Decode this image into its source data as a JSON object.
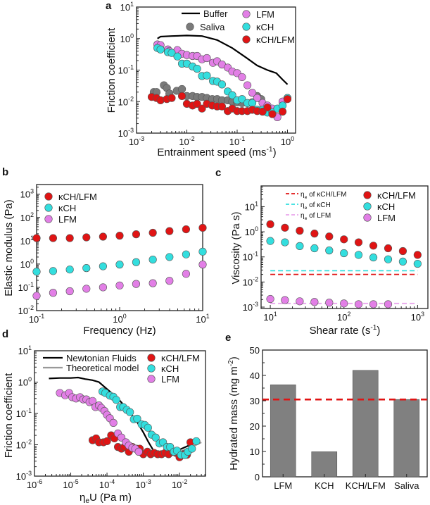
{
  "chart_data": [
    {
      "panel": "a",
      "type": "scatter",
      "xlabel": "Entrainment speed (ms^{-1})",
      "ylabel": "Friction coefficient",
      "xscale": "log",
      "yscale": "log",
      "xlim": [
        0.001,
        1.45
      ],
      "ylim": [
        0.001,
        10
      ],
      "xticks": [
        0.001,
        0.01,
        0.1,
        1
      ],
      "xtick_labels": [
        "10^{-3}",
        "10^{-2}",
        "10^{-1}",
        "10^{0}"
      ],
      "yticks": [
        0.001,
        0.01,
        0.1,
        1,
        10
      ],
      "ytick_labels": [
        "10^{-3}",
        "10^{-2}",
        "10^{-1}",
        "10^{0}",
        "10^{1}"
      ],
      "grid": false,
      "legend": "top",
      "series": [
        {
          "name": "Buffer",
          "kind": "line",
          "color": "#000000",
          "x": [
            0.0026,
            0.003,
            0.005,
            0.01,
            0.02,
            0.04,
            0.08,
            0.15,
            0.25,
            0.4,
            0.6,
            0.8,
            1.0
          ],
          "y": [
            1.0,
            1.15,
            1.2,
            1.25,
            1.2,
            0.9,
            0.5,
            0.25,
            0.14,
            0.1,
            0.08,
            0.05,
            0.035
          ]
        },
        {
          "name": "Saliva",
          "kind": "points",
          "color": "#7a7a7a",
          "x": [
            0.0022,
            0.0025,
            0.0035,
            0.004,
            0.0045,
            0.0063,
            0.008,
            0.01,
            0.013,
            0.016,
            0.02,
            0.025,
            0.032,
            0.04,
            0.05,
            0.065,
            0.08,
            0.1,
            0.125,
            0.16,
            0.2,
            0.25,
            0.3
          ],
          "y": [
            0.02,
            0.02,
            0.033,
            0.027,
            0.018,
            0.022,
            0.025,
            0.015,
            0.015,
            0.014,
            0.014,
            0.013,
            0.012,
            0.012,
            0.011,
            0.011,
            0.01,
            0.0095,
            0.009,
            0.009,
            0.0095,
            0.015,
            0.012
          ]
        },
        {
          "name": "LFM",
          "kind": "points",
          "color": "#e27fe6",
          "x": [
            0.0026,
            0.003,
            0.0042,
            0.0045,
            0.0065,
            0.008,
            0.01,
            0.013,
            0.016,
            0.02,
            0.025,
            0.033,
            0.04,
            0.05,
            0.065,
            0.08,
            0.1,
            0.125,
            0.16,
            0.2,
            0.25,
            0.32,
            0.4,
            0.5,
            0.63,
            0.8,
            1.0
          ],
          "y": [
            0.65,
            0.62,
            0.45,
            0.4,
            0.43,
            0.33,
            0.3,
            0.28,
            0.28,
            0.22,
            0.24,
            0.17,
            0.19,
            0.15,
            0.12,
            0.09,
            0.08,
            0.06,
            0.033,
            0.019,
            0.013,
            0.009,
            0.0075,
            0.006,
            0.0032,
            0.01,
            0.013
          ]
        },
        {
          "name": "κCH",
          "kind": "points",
          "color": "#33dede",
          "x": [
            0.0026,
            0.003,
            0.0042,
            0.005,
            0.0065,
            0.008,
            0.01,
            0.013,
            0.016,
            0.02,
            0.025,
            0.033,
            0.04,
            0.05,
            0.065,
            0.08,
            0.1,
            0.125,
            0.16,
            0.2,
            0.25,
            0.32,
            0.4,
            0.5,
            0.63,
            0.8,
            1.0
          ],
          "y": [
            0.5,
            0.45,
            0.37,
            0.35,
            0.27,
            0.16,
            0.16,
            0.13,
            0.11,
            0.065,
            0.067,
            0.045,
            0.043,
            0.035,
            0.021,
            0.016,
            0.011,
            0.012,
            0.009,
            0.009,
            0.0055,
            0.0055,
            0.0045,
            0.0045,
            0.006,
            0.0075,
            0.013
          ]
        },
        {
          "name": "κCH/LFM",
          "kind": "points",
          "color": "#e01414",
          "x": [
            0.002,
            0.0025,
            0.003,
            0.004,
            0.005,
            0.008,
            0.01,
            0.013,
            0.016,
            0.02,
            0.025,
            0.032,
            0.04,
            0.05,
            0.065,
            0.08,
            0.1,
            0.125,
            0.16,
            0.2,
            0.25,
            0.32,
            0.4,
            0.5,
            0.8,
            1.0
          ],
          "y": [
            0.014,
            0.013,
            0.011,
            0.012,
            0.013,
            0.015,
            0.0085,
            0.0075,
            0.0085,
            0.006,
            0.0085,
            0.0075,
            0.007,
            0.007,
            0.005,
            0.006,
            0.005,
            0.005,
            0.005,
            0.0055,
            0.005,
            0.0048,
            0.0065,
            0.004,
            0.0048,
            0.012
          ]
        }
      ]
    },
    {
      "panel": "b",
      "type": "scatter",
      "xlabel": "Frequency (Hz)",
      "ylabel": "Elastic modulus (Pa)",
      "xscale": "log",
      "yscale": "log",
      "xlim": [
        0.1,
        10
      ],
      "ylim": [
        0.01,
        2600
      ],
      "xticks": [
        0.1,
        1,
        10
      ],
      "xtick_labels": [
        "10^{-1}",
        "10^{0}",
        "10^{1}"
      ],
      "yticks": [
        0.01,
        0.1,
        1,
        10,
        100,
        1000
      ],
      "ytick_labels": [
        "10^{-2}",
        "10^{-1}",
        "10^{0}",
        "10^{1}",
        "10^{2}",
        "10^{3}"
      ],
      "grid": false,
      "legend": "top-left",
      "series": [
        {
          "name": "κCH/LFM",
          "kind": "points",
          "color": "#e01414",
          "x": [
            0.1,
            0.158,
            0.251,
            0.398,
            0.631,
            1,
            1.58,
            2.51,
            3.98,
            6.31,
            10
          ],
          "y": [
            13,
            13,
            13,
            14,
            15,
            16.5,
            19,
            22,
            26,
            31,
            36
          ]
        },
        {
          "name": "κCH",
          "kind": "points",
          "color": "#33dede",
          "x": [
            0.1,
            0.158,
            0.251,
            0.398,
            0.631,
            1,
            1.58,
            2.51,
            3.98,
            6.31,
            10
          ],
          "y": [
            0.47,
            0.5,
            0.58,
            0.67,
            0.8,
            0.95,
            1.2,
            1.55,
            2,
            2.6,
            3.4
          ]
        },
        {
          "name": "LFM",
          "kind": "points",
          "color": "#e27fe6",
          "x": [
            0.1,
            0.158,
            0.251,
            0.398,
            0.631,
            1,
            1.58,
            2.51,
            3.98,
            6.31,
            10
          ],
          "y": [
            0.043,
            0.058,
            0.068,
            0.087,
            0.1,
            0.12,
            0.14,
            0.15,
            0.19,
            0.38,
            0.95
          ]
        }
      ]
    },
    {
      "panel": "c",
      "type": "scatter",
      "xlabel": "Shear rate (s^{-1})",
      "ylabel": "Viscosity (Pa s)",
      "xscale": "log",
      "yscale": "log",
      "xlim": [
        7.5,
        1380
      ],
      "ylim": [
        0.00088,
        67
      ],
      "xticks": [
        10,
        100,
        1000
      ],
      "xtick_labels": [
        "10^{1}",
        "10^{2}",
        "10^{3}"
      ],
      "yticks": [
        0.001,
        0.01,
        0.1,
        1,
        10
      ],
      "ytick_labels": [
        "10^{-3}",
        "10^{-2}",
        "10^{-1}",
        "10^{0}",
        "10^{1}"
      ],
      "grid": false,
      "legend": "top",
      "series": [
        {
          "name": "η_{e} of κCH/LFM",
          "kind": "hline",
          "color": "#e01414",
          "x": [
            10,
            1000
          ],
          "y": [
            0.02,
            0.02
          ]
        },
        {
          "name": "η_{e} of κCH",
          "kind": "hline",
          "color": "#33dede",
          "x": [
            10,
            1000
          ],
          "y": [
            0.028,
            0.028
          ]
        },
        {
          "name": "η_{e} of LFM",
          "kind": "hline",
          "color": "#e9a6ec",
          "x": [
            10,
            1000
          ],
          "y": [
            0.0014,
            0.0014
          ]
        },
        {
          "name": "κCH/LFM",
          "kind": "points",
          "color": "#e01414",
          "x": [
            10,
            15.8,
            25.1,
            39.8,
            63.1,
            100,
            158,
            251,
            398,
            631,
            1000
          ],
          "y": [
            2.0,
            1.45,
            1.1,
            0.85,
            0.65,
            0.5,
            0.38,
            0.28,
            0.22,
            0.17,
            0.12
          ]
        },
        {
          "name": "κCH",
          "kind": "points",
          "color": "#33dede",
          "x": [
            10,
            15.8,
            25.1,
            39.8,
            63.1,
            100,
            158,
            251,
            398,
            631,
            1000
          ],
          "y": [
            0.43,
            0.38,
            0.27,
            0.22,
            0.18,
            0.14,
            0.12,
            0.095,
            0.08,
            0.065,
            0.053
          ]
        },
        {
          "name": "LFM",
          "kind": "points",
          "color": "#e27fe6",
          "x": [
            10,
            15.8,
            25.1,
            39.8,
            63.1,
            100,
            158,
            251,
            398
          ],
          "y": [
            0.0021,
            0.0019,
            0.0017,
            0.0016,
            0.0015,
            0.0014,
            0.0013,
            0.0013,
            0.0013
          ]
        }
      ]
    },
    {
      "panel": "d",
      "type": "scatter",
      "xlabel": "η_{e}U (Pa m)",
      "ylabel": "Friction coefficient",
      "xscale": "log",
      "yscale": "log",
      "xlim": [
        1e-06,
        0.052
      ],
      "ylim": [
        0.001,
        10
      ],
      "xticks": [
        1e-06,
        1e-05,
        0.0001,
        0.001,
        0.01
      ],
      "xtick_labels": [
        "10^{-6}",
        "10^{-5}",
        "10^{-4}",
        "10^{-3}",
        "10^{-2}"
      ],
      "yticks": [
        0.001,
        0.01,
        0.1,
        1,
        10
      ],
      "ytick_labels": [
        "10^{-3}",
        "10^{-2}",
        "10^{-1}",
        "10^{0}",
        "10^{1}"
      ],
      "grid": false,
      "legend": "top",
      "series": [
        {
          "name": "Newtonian Fluids",
          "kind": "line",
          "color": "#000000",
          "x": [
            2.5e-06,
            5e-06,
            1e-05,
            1.6e-05,
            2.5e-05,
            4e-05,
            6e-05,
            0.0001,
            0.0002,
            0.0004,
            0.0007,
            0.001,
            0.0014,
            0.002,
            0.003,
            0.005,
            0.01,
            0.02
          ],
          "y": [
            1.3,
            1.35,
            1.35,
            1.4,
            1.25,
            1.15,
            1.0,
            0.6,
            0.3,
            0.12,
            0.05,
            0.025,
            0.012,
            0.006,
            0.0055,
            0.0055,
            0.007,
            0.01
          ]
        },
        {
          "name": "Theoretical model",
          "kind": "line",
          "color": "#999999",
          "x": [
            0.005,
            0.01,
            0.02,
            0.04
          ],
          "y": [
            0.0048,
            0.006,
            0.008,
            0.012
          ]
        },
        {
          "name": "κCH/LFM",
          "kind": "points",
          "color": "#e01414",
          "x": [
            4e-05,
            5e-05,
            6e-05,
            8e-05,
            0.0001,
            0.00013,
            0.00016,
            0.0002,
            0.00025,
            0.0003,
            0.0004,
            0.0005,
            0.00065,
            0.0008,
            0.001,
            0.0013,
            0.0016,
            0.002,
            0.0025,
            0.0032,
            0.004,
            0.005,
            0.0065,
            0.008,
            0.01,
            0.013,
            0.016,
            0.02
          ],
          "y": [
            0.014,
            0.016,
            0.012,
            0.012,
            0.013,
            0.02,
            0.016,
            0.0085,
            0.0075,
            0.0085,
            0.006,
            0.0085,
            0.0075,
            0.0075,
            0.005,
            0.006,
            0.005,
            0.0055,
            0.005,
            0.005,
            0.0055,
            0.005,
            0.006,
            0.0055,
            0.004,
            0.005,
            0.0048,
            0.012
          ]
        },
        {
          "name": "κCH",
          "kind": "points",
          "color": "#33dede",
          "x": [
            7.5e-05,
            9e-05,
            0.00012,
            0.00015,
            0.00018,
            0.00023,
            0.00028,
            0.00035,
            0.00043,
            0.00055,
            0.00068,
            0.0009,
            0.0011,
            0.00135,
            0.0017,
            0.0022,
            0.0028,
            0.0035,
            0.0045,
            0.0055,
            0.007,
            0.0085,
            0.011,
            0.014,
            0.017,
            0.022,
            0.029
          ],
          "y": [
            0.5,
            0.45,
            0.37,
            0.34,
            0.27,
            0.16,
            0.16,
            0.13,
            0.11,
            0.065,
            0.068,
            0.045,
            0.043,
            0.035,
            0.021,
            0.017,
            0.011,
            0.012,
            0.0085,
            0.0085,
            0.006,
            0.0065,
            0.0047,
            0.0047,
            0.006,
            0.0075,
            0.013
          ]
        },
        {
          "name": "LFM",
          "kind": "points",
          "color": "#e27fe6",
          "x": [
            5e-06,
            7e-06,
            9e-06,
            1.1e-05,
            1.4e-05,
            1.8e-05,
            2.2e-05,
            2.7e-05,
            3.3e-05,
            4e-05,
            4.8e-05,
            6e-05,
            7e-05,
            8.5e-05,
            0.0001,
            0.00012,
            0.00015,
            0.0002,
            0.00025,
            0.00033,
            0.0004,
            0.0005,
            0.0006,
            0.00075
          ],
          "y": [
            0.45,
            0.38,
            0.45,
            0.33,
            0.3,
            0.33,
            0.28,
            0.28,
            0.23,
            0.25,
            0.16,
            0.18,
            0.15,
            0.12,
            0.09,
            0.07,
            0.05,
            0.023,
            0.017,
            0.012,
            0.0095,
            0.008,
            0.0075,
            0.006
          ]
        }
      ]
    },
    {
      "panel": "e",
      "type": "bar",
      "xlabel": "",
      "ylabel": "Hydrated mass (mg m^{-2})",
      "categories": [
        "LFM",
        "KCH",
        "KCH/LFM",
        "Saliva"
      ],
      "values": [
        36.3,
        9.9,
        42.0,
        30.5
      ],
      "bar_color": "#808080",
      "reference_line": {
        "value": 30.5,
        "color": "#e01414",
        "style": "dashed"
      },
      "ylim": [
        0,
        50
      ],
      "yticks": [
        0,
        10,
        20,
        30,
        40,
        50
      ],
      "ytick_labels": [
        "0",
        "10",
        "20",
        "30",
        "40",
        "50"
      ],
      "grid": false
    }
  ]
}
